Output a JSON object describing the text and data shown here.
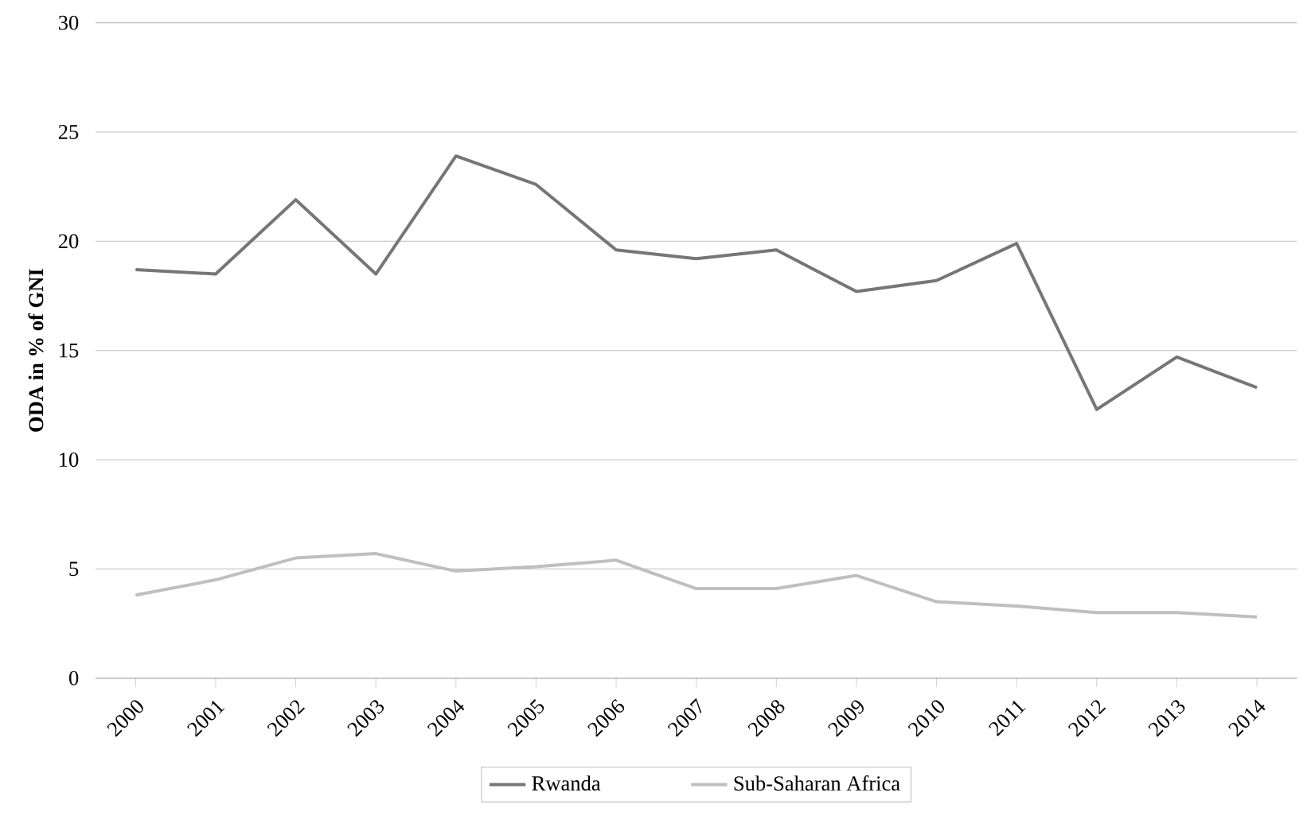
{
  "chart_data": {
    "type": "line",
    "ylabel": "ODA in % of GNI",
    "categories": [
      "2000",
      "2001",
      "2002",
      "2003",
      "2004",
      "2005",
      "2006",
      "2007",
      "2008",
      "2009",
      "2010",
      "2011",
      "2012",
      "2013",
      "2014"
    ],
    "series": [
      {
        "name": "Rwanda",
        "color": "#767676",
        "values": [
          18.7,
          18.5,
          21.9,
          18.5,
          23.9,
          22.6,
          19.6,
          19.2,
          19.6,
          17.7,
          18.2,
          19.9,
          12.3,
          14.7,
          13.3
        ]
      },
      {
        "name": "Sub-Saharan Africa",
        "color": "#bfbfbf",
        "values": [
          3.8,
          4.5,
          5.5,
          5.7,
          4.9,
          5.1,
          5.4,
          4.1,
          4.1,
          4.7,
          3.5,
          3.3,
          3.0,
          3.0,
          2.8
        ]
      }
    ],
    "ylim": [
      0,
      30
    ],
    "yticks": [
      0,
      5,
      10,
      15,
      20,
      25,
      30
    ],
    "grid": "y",
    "legend": "bottom",
    "marker": "none",
    "line_style": "solid"
  }
}
